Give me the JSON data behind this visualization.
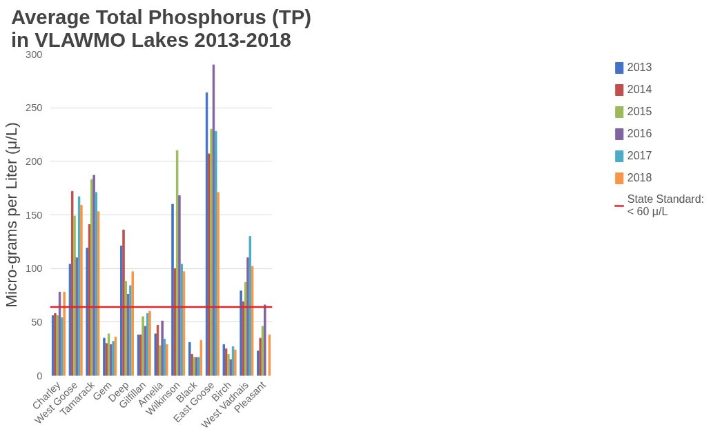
{
  "chart_data": {
    "type": "bar",
    "title": "Average Total Phosphorus (TP)\nin VLAWMO Lakes 2013-2018",
    "ylabel": "Micro-grams per Liter (μ/L)",
    "categories": [
      "Charley",
      "West Goose",
      "Tamarack",
      "Gem",
      "Deep",
      "Gilfillan",
      "Amelia",
      "Wilkinson",
      "Black",
      "East Goose",
      "Birch",
      "West Vadnais",
      "Pleasant"
    ],
    "series": [
      {
        "name": "2013",
        "color": "#4472c4",
        "values": [
          56,
          104,
          119,
          35,
          121,
          38,
          39,
          160,
          31,
          264,
          29,
          79,
          23
        ]
      },
      {
        "name": "2014",
        "color": "#c0504d",
        "values": [
          58,
          172,
          141,
          30,
          136,
          38,
          47,
          100,
          20,
          207,
          25,
          69,
          35
        ]
      },
      {
        "name": "2015",
        "color": "#9bbb59",
        "values": [
          56,
          149,
          183,
          39,
          88,
          55,
          28,
          210,
          17,
          230,
          20,
          87,
          46
        ]
      },
      {
        "name": "2016",
        "color": "#8064a2",
        "values": [
          78,
          110,
          187,
          29,
          76,
          46,
          51,
          168,
          17,
          290,
          15,
          110,
          66
        ]
      },
      {
        "name": "2017",
        "color": "#4bacc6",
        "values": [
          54,
          167,
          171,
          32,
          84,
          58,
          34,
          104,
          17,
          228,
          27,
          130,
          null
        ]
      },
      {
        "name": "2018",
        "color": "#f79646",
        "values": [
          78,
          159,
          153,
          36,
          97,
          60,
          29,
          97,
          33,
          171,
          24,
          102,
          38
        ]
      }
    ],
    "ylim": [
      0,
      300
    ],
    "yticks": [
      0,
      50,
      100,
      150,
      200,
      250,
      300
    ],
    "grid": "y",
    "legend": "right",
    "ref_lines": [
      {
        "axis": "y",
        "value": 64,
        "label": "State Standard:\n< 60 μ/L",
        "color": "#e0262a"
      }
    ]
  }
}
